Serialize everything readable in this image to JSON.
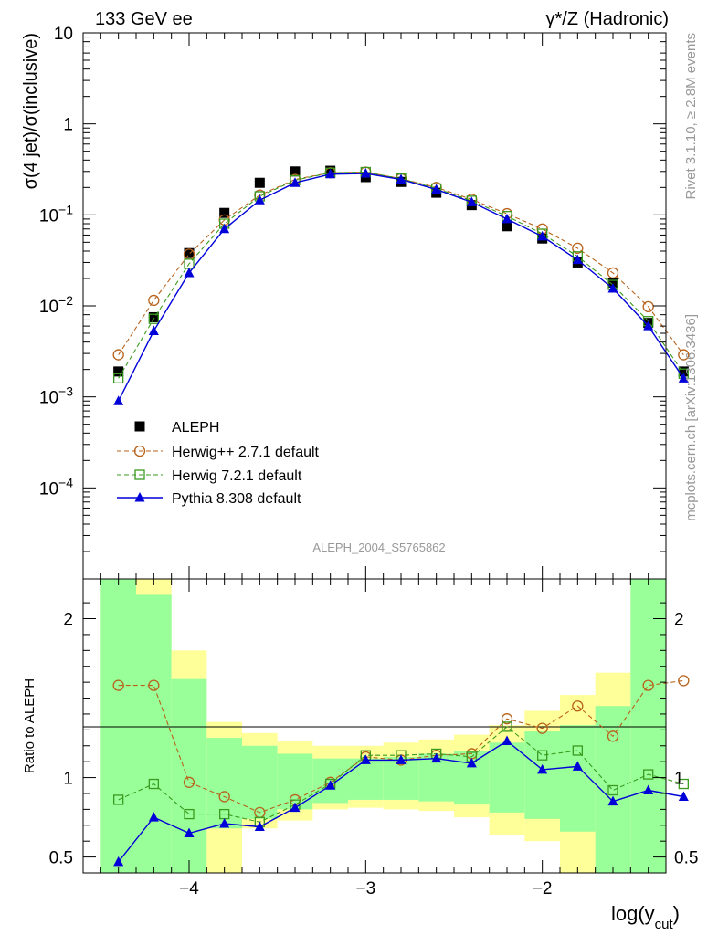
{
  "header": {
    "left": "133 GeV ee",
    "right": "γ*/Z (Hadronic)"
  },
  "side_labels": {
    "rivet": "Rivet 3.1.10, ≥ 2.8M events",
    "mcplots": "mcplots.cern.ch [arXiv:1306.3436]"
  },
  "analysis_label": "ALEPH_2004_S5765862",
  "colors": {
    "aleph": "#000000",
    "herwigpp": "#b8621b",
    "herwig7": "#3a9a1f",
    "pythia": "#0000d8",
    "band_inner": "#99ff99",
    "band_outer": "#ffff99"
  },
  "chart_data": [
    {
      "type": "scatter",
      "panel": "main",
      "xlabel": "log(y_cut)",
      "ylabel": "σ(4 jet)/σ(inclusive)",
      "y_scale": "log",
      "xlim": [
        -4.6,
        -1.3
      ],
      "ylim": [
        1e-05,
        10
      ],
      "y_ticks": [
        "10",
        "1",
        "10^-1",
        "10^-2",
        "10^-3",
        "10^-4"
      ],
      "legend_position": "center-left",
      "x": [
        -4.4,
        -4.2,
        -4.0,
        -3.8,
        -3.6,
        -3.4,
        -3.2,
        -3.0,
        -2.8,
        -2.6,
        -2.4,
        -2.2,
        -2.0,
        -1.8,
        -1.6,
        -1.4,
        -1.2
      ],
      "series": [
        {
          "name": "ALEPH",
          "key": "aleph",
          "marker": "square-filled",
          "line": "none",
          "values": [
            0.0019,
            0.0075,
            0.038,
            0.105,
            0.225,
            0.3,
            0.305,
            0.26,
            0.23,
            0.175,
            0.128,
            0.075,
            0.055,
            0.03,
            0.018,
            0.0065,
            0.0019
          ]
        },
        {
          "name": "Herwig++ 2.7.1 default",
          "key": "herwigpp",
          "marker": "circle-open",
          "line": "dashed",
          "values": [
            0.0029,
            0.0115,
            0.037,
            0.088,
            0.165,
            0.245,
            0.29,
            0.295,
            0.25,
            0.2,
            0.148,
            0.103,
            0.07,
            0.043,
            0.023,
            0.0098,
            0.0029
          ]
        },
        {
          "name": "Herwig 7.2.1 default",
          "key": "herwig7",
          "marker": "square-open",
          "line": "dashed",
          "values": [
            0.0016,
            0.0072,
            0.029,
            0.08,
            0.16,
            0.24,
            0.29,
            0.295,
            0.25,
            0.195,
            0.143,
            0.097,
            0.062,
            0.035,
            0.017,
            0.0068,
            0.0018
          ]
        },
        {
          "name": "Pythia 8.308 default",
          "key": "pythia",
          "marker": "triangle-filled",
          "line": "solid",
          "values": [
            0.0009,
            0.0053,
            0.023,
            0.07,
            0.145,
            0.225,
            0.28,
            0.285,
            0.245,
            0.19,
            0.138,
            0.09,
            0.058,
            0.032,
            0.0155,
            0.006,
            0.0016
          ]
        }
      ]
    },
    {
      "type": "line",
      "panel": "ratio",
      "xlabel": "log(y_cut)",
      "ylabel": "Ratio to ALEPH",
      "xlim": [
        -4.6,
        -1.3
      ],
      "ylim": [
        0.4,
        2.25
      ],
      "x_ticks": [
        "−4",
        "−3",
        "−2"
      ],
      "y_ticks": [
        "0.5",
        "1",
        "2"
      ],
      "reference_line": 1,
      "x": [
        -4.4,
        -4.2,
        -4.0,
        -3.8,
        -3.6,
        -3.4,
        -3.2,
        -3.0,
        -2.8,
        -2.6,
        -2.4,
        -2.2,
        -2.0,
        -1.8,
        -1.6,
        -1.4,
        -1.2
      ],
      "bands": {
        "edges": [
          -4.5,
          -4.3,
          -4.1,
          -3.9,
          -3.7,
          -3.5,
          -3.3,
          -3.1,
          -2.9,
          -2.7,
          -2.5,
          -2.3,
          -2.1,
          -1.9,
          -1.7,
          -1.5,
          -1.3,
          -1.1
        ],
        "inner_low": [
          0.4,
          0.4,
          0.4,
          0.68,
          0.74,
          0.8,
          0.84,
          0.86,
          0.86,
          0.85,
          0.83,
          0.78,
          0.74,
          0.66,
          0.4,
          0.4,
          0.4
        ],
        "inner_high": [
          2.25,
          2.15,
          1.62,
          1.25,
          1.2,
          1.15,
          1.12,
          1.12,
          1.13,
          1.15,
          1.17,
          1.22,
          1.29,
          1.33,
          1.45,
          2.25,
          2.25
        ],
        "outer_low": [
          0.4,
          0.4,
          0.4,
          0.4,
          0.68,
          0.73,
          0.8,
          0.81,
          0.8,
          0.79,
          0.75,
          0.64,
          0.6,
          0.4,
          0.4,
          0.4,
          0.4
        ],
        "outer_high": [
          2.25,
          2.25,
          1.8,
          1.35,
          1.28,
          1.23,
          1.2,
          1.2,
          1.22,
          1.24,
          1.27,
          1.33,
          1.42,
          1.52,
          1.66,
          2.25,
          2.25
        ]
      },
      "series": [
        {
          "name": "Herwig++ 2.7.1 default",
          "key": "herwigpp",
          "marker": "circle-open",
          "line": "dashed",
          "values": [
            1.58,
            1.58,
            0.97,
            0.88,
            0.78,
            0.86,
            0.97,
            1.13,
            1.11,
            1.14,
            1.15,
            1.37,
            1.31,
            1.45,
            1.26,
            1.58,
            1.61
          ]
        },
        {
          "name": "Herwig 7.2.1 default",
          "key": "herwig7",
          "marker": "square-open",
          "line": "dashed",
          "values": [
            0.86,
            0.96,
            0.77,
            0.77,
            0.72,
            0.83,
            0.96,
            1.14,
            1.14,
            1.15,
            1.13,
            1.32,
            1.14,
            1.17,
            0.92,
            1.02,
            0.96
          ]
        },
        {
          "name": "Pythia 8.308 default",
          "key": "pythia",
          "marker": "triangle-filled",
          "line": "solid",
          "values": [
            0.47,
            0.75,
            0.65,
            0.71,
            0.69,
            0.81,
            0.95,
            1.11,
            1.11,
            1.12,
            1.09,
            1.23,
            1.05,
            1.07,
            0.85,
            0.92,
            0.88
          ]
        }
      ]
    }
  ]
}
